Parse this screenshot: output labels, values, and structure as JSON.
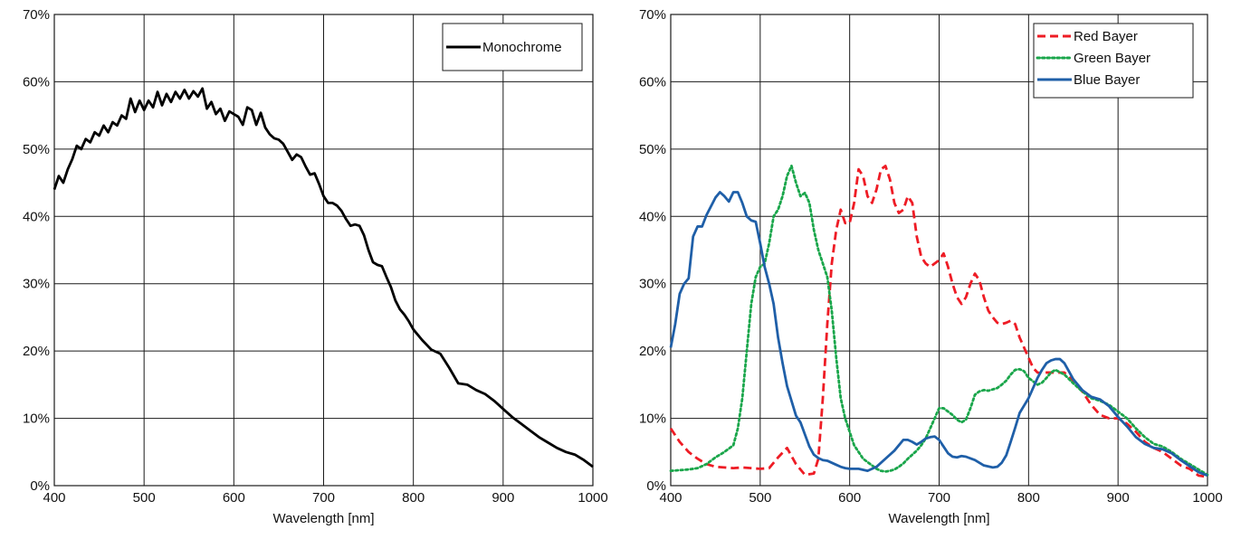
{
  "chart_data": [
    {
      "type": "line",
      "xlabel": "Wavelength [nm]",
      "ylabel": "",
      "xlim": [
        400,
        1000
      ],
      "ylim": [
        0,
        70
      ],
      "xticks": [
        "400",
        "500",
        "600",
        "700",
        "800",
        "900",
        "1000"
      ],
      "yticks": [
        "0%",
        "10%",
        "20%",
        "30%",
        "40%",
        "50%",
        "60%",
        "70%"
      ],
      "grid": true,
      "legend_position": "top-right",
      "series": [
        {
          "name": "Monochrome",
          "color": "#000000",
          "dash": "solid",
          "x": [
            400,
            405,
            410,
            415,
            420,
            425,
            430,
            435,
            440,
            445,
            450,
            455,
            460,
            465,
            470,
            475,
            480,
            485,
            490,
            495,
            500,
            505,
            510,
            515,
            520,
            525,
            530,
            535,
            540,
            545,
            550,
            555,
            560,
            565,
            570,
            575,
            580,
            585,
            590,
            595,
            600,
            605,
            610,
            615,
            620,
            625,
            630,
            635,
            640,
            645,
            650,
            655,
            660,
            665,
            670,
            675,
            680,
            685,
            690,
            695,
            700,
            705,
            710,
            715,
            720,
            725,
            730,
            735,
            740,
            745,
            750,
            755,
            760,
            765,
            770,
            775,
            780,
            785,
            790,
            795,
            800,
            810,
            820,
            830,
            840,
            850,
            860,
            870,
            880,
            890,
            900,
            910,
            920,
            930,
            940,
            950,
            960,
            970,
            980,
            990,
            1000
          ],
          "y": [
            44,
            46,
            45,
            47,
            48.5,
            50.5,
            50,
            51.5,
            51,
            52.5,
            52,
            53.5,
            52.5,
            54,
            53.5,
            55,
            54.5,
            57.5,
            55.5,
            57.2,
            55.8,
            57.2,
            56.2,
            58.5,
            56.5,
            58.2,
            57,
            58.5,
            57.5,
            58.8,
            57.5,
            58.6,
            57.8,
            59,
            56,
            57,
            55.2,
            56,
            54.2,
            55.6,
            55.2,
            54.8,
            53.6,
            56.2,
            55.8,
            53.6,
            55.4,
            53.2,
            52.2,
            51.6,
            51.4,
            50.8,
            49.6,
            48.4,
            49.2,
            48.8,
            47.4,
            46.2,
            46.4,
            44.8,
            43,
            42,
            42,
            41.6,
            40.8,
            39.6,
            38.6,
            38.8,
            38.6,
            37.2,
            35,
            33.2,
            32.8,
            32.6,
            31,
            29.5,
            27.5,
            26.2,
            25.4,
            24.4,
            23.2,
            21.6,
            20.2,
            19.6,
            17.5,
            15.2,
            15,
            14.2,
            13.6,
            12.6,
            11.4,
            10.2,
            9.2,
            8.2,
            7.2,
            6.4,
            5.6,
            5,
            4.6,
            3.8,
            2.8
          ]
        }
      ]
    },
    {
      "type": "line",
      "xlabel": "Wavelength [nm]",
      "ylabel": "",
      "xlim": [
        400,
        1000
      ],
      "ylim": [
        0,
        70
      ],
      "xticks": [
        "400",
        "500",
        "600",
        "700",
        "800",
        "900",
        "1000"
      ],
      "yticks": [
        "0%",
        "10%",
        "20%",
        "30%",
        "40%",
        "50%",
        "60%",
        "70%"
      ],
      "grid": true,
      "legend_position": "top-right",
      "series": [
        {
          "name": "Red Bayer",
          "color": "#ee1c25",
          "dash": "dashed",
          "x": [
            400,
            410,
            420,
            430,
            440,
            450,
            460,
            470,
            480,
            490,
            500,
            510,
            520,
            530,
            540,
            550,
            560,
            565,
            570,
            575,
            580,
            585,
            590,
            595,
            600,
            605,
            610,
            615,
            620,
            625,
            630,
            635,
            640,
            645,
            650,
            655,
            660,
            665,
            670,
            675,
            680,
            685,
            690,
            695,
            700,
            705,
            710,
            715,
            720,
            725,
            730,
            735,
            740,
            745,
            750,
            755,
            760,
            765,
            770,
            775,
            780,
            785,
            790,
            795,
            800,
            805,
            810,
            815,
            820,
            830,
            840,
            850,
            860,
            870,
            880,
            890,
            900,
            910,
            920,
            930,
            940,
            950,
            960,
            970,
            980,
            990,
            1000
          ],
          "y": [
            8.5,
            6.5,
            5,
            4,
            3.2,
            2.8,
            2.7,
            2.6,
            2.7,
            2.6,
            2.5,
            2.6,
            4.2,
            5.6,
            3.2,
            1.6,
            1.8,
            4,
            13,
            24,
            33,
            38,
            41,
            39,
            39,
            42,
            47,
            46,
            43,
            42,
            44,
            47,
            47.5,
            45.5,
            42,
            40.5,
            41,
            43,
            42,
            37,
            34,
            33,
            32.5,
            33,
            33.5,
            34.5,
            32.5,
            30,
            28,
            27,
            28,
            30,
            31.5,
            30.5,
            28,
            26,
            25,
            24.2,
            24,
            24.2,
            24.5,
            24,
            22,
            20.5,
            19,
            17.5,
            16.8,
            16.7,
            16.8,
            16.8,
            16.8,
            15.5,
            14,
            12,
            10.5,
            10,
            10,
            9.2,
            8,
            6.5,
            5.6,
            5,
            4,
            3,
            2.5,
            1.5,
            1.3
          ]
        },
        {
          "name": "Green Bayer",
          "color": "#1aa64b",
          "dash": "dotted",
          "x": [
            400,
            410,
            420,
            430,
            440,
            450,
            460,
            470,
            475,
            480,
            485,
            490,
            495,
            500,
            505,
            510,
            515,
            520,
            525,
            530,
            535,
            540,
            545,
            550,
            555,
            560,
            565,
            570,
            575,
            580,
            585,
            590,
            595,
            600,
            605,
            610,
            615,
            620,
            625,
            630,
            635,
            640,
            645,
            650,
            655,
            660,
            665,
            670,
            675,
            680,
            685,
            690,
            695,
            700,
            705,
            710,
            715,
            720,
            725,
            730,
            735,
            740,
            745,
            750,
            755,
            760,
            765,
            770,
            775,
            780,
            785,
            790,
            795,
            800,
            805,
            810,
            815,
            820,
            825,
            830,
            840,
            850,
            860,
            870,
            880,
            890,
            900,
            910,
            920,
            930,
            940,
            950,
            960,
            970,
            980,
            990,
            1000
          ],
          "y": [
            2.2,
            2.3,
            2.4,
            2.6,
            3.2,
            4.2,
            5,
            6,
            8.5,
            13,
            20,
            27,
            31,
            32.5,
            33,
            36,
            40,
            41,
            43,
            46,
            47.5,
            45,
            43,
            43.5,
            42,
            38,
            35,
            33,
            31,
            26,
            19,
            13,
            10,
            8,
            6,
            5,
            4,
            3.5,
            3,
            2.5,
            2.2,
            2.1,
            2.2,
            2.4,
            2.8,
            3.3,
            4,
            4.6,
            5.2,
            6,
            7,
            8.5,
            10,
            11.5,
            11.5,
            11,
            10.5,
            9.8,
            9.4,
            9.8,
            11.5,
            13.5,
            14,
            14.2,
            14.1,
            14.3,
            14.5,
            15,
            15.6,
            16.5,
            17.2,
            17.3,
            17,
            16,
            15.5,
            15,
            15.3,
            16,
            16.8,
            17.2,
            16.5,
            15.2,
            14,
            13,
            12.6,
            12,
            11,
            10,
            8.5,
            7.2,
            6.2,
            5.8,
            5,
            4,
            3.2,
            2.4,
            1.6
          ]
        },
        {
          "name": "Blue Bayer",
          "color": "#1f5fa8",
          "dash": "solid",
          "x": [
            400,
            405,
            410,
            415,
            420,
            425,
            430,
            435,
            440,
            445,
            450,
            455,
            460,
            465,
            470,
            475,
            480,
            485,
            490,
            495,
            500,
            505,
            510,
            515,
            520,
            525,
            530,
            535,
            540,
            545,
            550,
            555,
            560,
            565,
            570,
            575,
            580,
            585,
            590,
            595,
            600,
            610,
            620,
            630,
            640,
            650,
            660,
            665,
            670,
            675,
            680,
            685,
            690,
            695,
            700,
            705,
            710,
            715,
            720,
            725,
            730,
            740,
            750,
            760,
            765,
            770,
            775,
            780,
            785,
            790,
            795,
            800,
            805,
            810,
            815,
            820,
            825,
            830,
            835,
            840,
            845,
            850,
            860,
            870,
            880,
            890,
            900,
            910,
            920,
            930,
            940,
            950,
            960,
            970,
            980,
            990,
            1000
          ],
          "y": [
            20.5,
            24,
            28.5,
            30,
            30.8,
            37,
            38.5,
            38.5,
            40.2,
            41.5,
            42.8,
            43.6,
            43,
            42.2,
            43.6,
            43.6,
            42,
            40,
            39.4,
            39.2,
            36,
            32.5,
            30,
            27,
            22,
            18.2,
            14.8,
            12.6,
            10.4,
            9.4,
            7.6,
            5.8,
            4.6,
            4.1,
            3.8,
            3.7,
            3.4,
            3.1,
            2.8,
            2.6,
            2.5,
            2.5,
            2.2,
            2.8,
            4,
            5.2,
            6.8,
            6.8,
            6.5,
            6.1,
            6.5,
            7,
            7.2,
            7.3,
            6.8,
            5.8,
            4.8,
            4.3,
            4.2,
            4.4,
            4.3,
            3.8,
            3,
            2.7,
            2.8,
            3.4,
            4.5,
            6.5,
            8.6,
            10.8,
            11.9,
            13,
            14.5,
            16,
            17.2,
            18.2,
            18.6,
            18.8,
            18.8,
            18.2,
            17,
            15.8,
            14.2,
            13.2,
            12.8,
            11.8,
            10.2,
            8.8,
            7.2,
            6.2,
            5.6,
            5.4,
            4.8,
            3.8,
            2.9,
            2,
            1.5
          ]
        }
      ]
    }
  ]
}
